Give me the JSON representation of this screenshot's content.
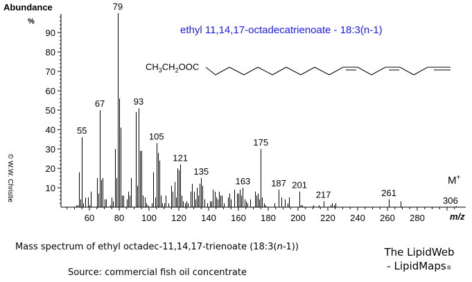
{
  "chart_data": {
    "type": "bar",
    "title": "ethyl 11,14,17-octadecatrienoate - 18:3(n-1)",
    "xlabel": "m/z",
    "ylabel": "Abundance %",
    "xlim": [
      40,
      310
    ],
    "ylim": [
      0,
      100
    ],
    "x_ticks": [
      60,
      80,
      100,
      120,
      140,
      160,
      180,
      200,
      220,
      240,
      260,
      280
    ],
    "y_ticks": [
      10,
      20,
      30,
      40,
      50,
      60,
      70,
      80,
      90
    ],
    "grid": false,
    "legend": null,
    "peaks": [
      [
        51,
        1
      ],
      [
        52,
        1
      ],
      [
        53,
        18
      ],
      [
        54,
        4
      ],
      [
        55,
        36
      ],
      [
        56,
        2
      ],
      [
        57,
        5
      ],
      [
        59,
        5
      ],
      [
        60,
        1
      ],
      [
        61,
        8
      ],
      [
        65,
        15
      ],
      [
        66,
        7
      ],
      [
        67,
        50
      ],
      [
        68,
        14
      ],
      [
        69,
        15
      ],
      [
        70,
        4
      ],
      [
        71,
        4
      ],
      [
        74,
        1
      ],
      [
        75,
        5
      ],
      [
        76,
        3
      ],
      [
        77,
        30
      ],
      [
        78,
        15
      ],
      [
        79,
        100
      ],
      [
        80,
        56
      ],
      [
        81,
        41
      ],
      [
        82,
        6
      ],
      [
        83,
        6
      ],
      [
        85,
        4
      ],
      [
        86,
        8
      ],
      [
        87,
        6
      ],
      [
        88,
        15
      ],
      [
        91,
        49
      ],
      [
        92,
        11
      ],
      [
        93,
        51
      ],
      [
        94,
        29
      ],
      [
        95,
        29
      ],
      [
        96,
        6
      ],
      [
        97,
        5
      ],
      [
        98,
        2
      ],
      [
        99,
        1
      ],
      [
        102,
        2
      ],
      [
        103,
        18
      ],
      [
        104,
        5
      ],
      [
        105,
        33
      ],
      [
        106,
        28
      ],
      [
        107,
        24
      ],
      [
        108,
        6
      ],
      [
        109,
        2
      ],
      [
        110,
        2
      ],
      [
        111,
        6
      ],
      [
        113,
        2
      ],
      [
        115,
        11
      ],
      [
        116,
        8
      ],
      [
        117,
        13
      ],
      [
        118,
        5
      ],
      [
        119,
        20
      ],
      [
        120,
        19
      ],
      [
        121,
        22
      ],
      [
        122,
        6
      ],
      [
        123,
        3
      ],
      [
        124,
        2
      ],
      [
        125,
        3
      ],
      [
        126,
        2
      ],
      [
        128,
        8
      ],
      [
        129,
        12
      ],
      [
        130,
        8
      ],
      [
        131,
        4
      ],
      [
        132,
        10
      ],
      [
        133,
        6
      ],
      [
        134,
        12
      ],
      [
        135,
        15
      ],
      [
        136,
        11
      ],
      [
        137,
        4
      ],
      [
        139,
        2
      ],
      [
        141,
        3
      ],
      [
        142,
        3
      ],
      [
        143,
        9
      ],
      [
        144,
        8
      ],
      [
        145,
        5
      ],
      [
        146,
        4
      ],
      [
        147,
        8
      ],
      [
        148,
        6
      ],
      [
        149,
        6
      ],
      [
        150,
        2
      ],
      [
        153,
        5
      ],
      [
        154,
        7
      ],
      [
        155,
        4
      ],
      [
        157,
        9
      ],
      [
        159,
        7
      ],
      [
        160,
        7
      ],
      [
        161,
        9
      ],
      [
        162,
        6
      ],
      [
        163,
        10
      ],
      [
        164,
        4
      ],
      [
        165,
        3
      ],
      [
        166,
        2
      ],
      [
        168,
        4
      ],
      [
        171,
        8
      ],
      [
        172,
        6
      ],
      [
        173,
        7
      ],
      [
        174,
        4
      ],
      [
        175,
        30
      ],
      [
        176,
        5
      ],
      [
        177,
        2
      ],
      [
        178,
        1
      ],
      [
        184,
        2
      ],
      [
        187,
        9
      ],
      [
        189,
        5
      ],
      [
        191,
        4
      ],
      [
        193,
        2
      ],
      [
        194,
        5
      ],
      [
        201,
        8
      ],
      [
        202,
        1
      ],
      [
        203,
        1
      ],
      [
        210,
        1
      ],
      [
        214,
        1
      ],
      [
        217,
        3
      ],
      [
        222,
        1
      ],
      [
        223,
        2
      ],
      [
        224,
        1
      ],
      [
        225,
        2
      ],
      [
        261,
        4
      ],
      [
        269,
        3
      ],
      [
        306,
        0.5
      ]
    ],
    "annotations": [
      {
        "mz": 55,
        "label": "55"
      },
      {
        "mz": 67,
        "label": "67"
      },
      {
        "mz": 79,
        "label": "79"
      },
      {
        "mz": 93,
        "label": "93"
      },
      {
        "mz": 105,
        "label": "105"
      },
      {
        "mz": 121,
        "label": "121"
      },
      {
        "mz": 135,
        "label": "135"
      },
      {
        "mz": 163,
        "label": "163"
      },
      {
        "mz": 175,
        "label": "175"
      },
      {
        "mz": 187,
        "label": "187"
      },
      {
        "mz": 201,
        "label": "201"
      },
      {
        "mz": 217,
        "label": "217"
      },
      {
        "mz": 261,
        "label": "261"
      },
      {
        "mz": 306,
        "label": "306"
      }
    ],
    "molecular_ion_label": "M+"
  },
  "labels": {
    "y_axis_title": "Abundance",
    "y_axis_unit": "%",
    "x_axis_title": "m/z",
    "compound_title": "ethyl 11,14,17-octadecatrienoate - 18:3(n-1)",
    "formula_head": "CH3CH2OOC",
    "molecular_ion": "M",
    "molecular_ion_sup": "+",
    "copyright": "© W.W. Christie"
  },
  "caption": {
    "line1_prefix": "Mass spectrum of ethyl octadec-11,14,17-trienoate  (18:3(",
    "line1_italic": "n",
    "line1_suffix": "-1))",
    "source": "Source: commercial fish oil concentrate"
  },
  "credit": {
    "line1": "The LipidWeb",
    "line2": "- LipidMaps",
    "mark": "®"
  },
  "colors": {
    "title": "#1a1aff",
    "axis": "#000000",
    "peaks": "#000000"
  }
}
